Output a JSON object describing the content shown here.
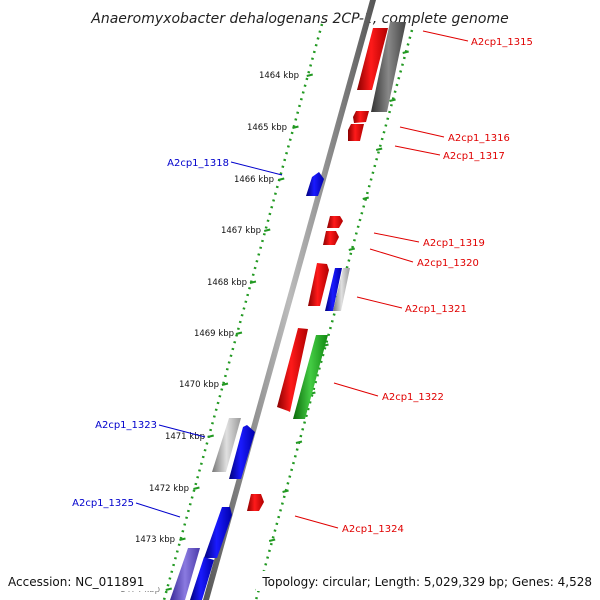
{
  "title": "Anaeromyxobacter dehalogenans 2CP-1, complete genome",
  "accession": "Accession: NC_011891",
  "topology": "Topology: circular; Length: 5,029,329 bp; Genes: 4,528",
  "ticks": [
    "1464 kbp",
    "1465 kbp",
    "1466 kbp",
    "1467 kbp",
    "1468 kbp",
    "1469 kbp",
    "1470 kbp",
    "1471 kbp",
    "1472 kbp",
    "1473 kbp",
    "1474 kbp"
  ],
  "genes_right": [
    "A2cp1_1315",
    "A2cp1_1316",
    "A2cp1_1317",
    "A2cp1_1319",
    "A2cp1_1320",
    "A2cp1_1321",
    "A2cp1_1322",
    "A2cp1_1324"
  ],
  "genes_left": [
    "A2cp1_1318",
    "A2cp1_1323",
    "A2cp1_1325"
  ],
  "colors": {
    "forward": "#ff0000",
    "reverse": "#0000ee",
    "rna": "#22aa22",
    "pseudo": "#aaaaaa",
    "scale": "#229922",
    "axis": "#888888",
    "label_forward": "#e00000",
    "label_reverse": "#0000cc"
  }
}
